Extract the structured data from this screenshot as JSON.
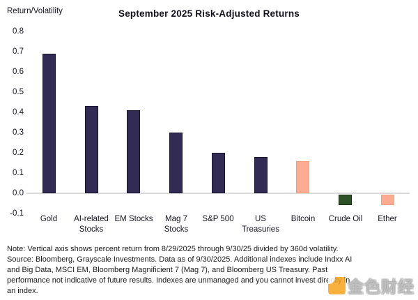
{
  "chart_data": {
    "type": "bar",
    "title": "September 2025 Risk-Adjusted Returns",
    "ylabel": "Return/Volatility",
    "xlabel": "",
    "categories": [
      "Gold",
      "AI-related\nStocks",
      "EM Stocks",
      "Mag 7\nStocks",
      "S&P 500",
      "US\nTreasuries",
      "Bitcoin",
      "Crude Oil",
      "Ether"
    ],
    "values": [
      0.69,
      0.43,
      0.41,
      0.3,
      0.2,
      0.18,
      0.16,
      -0.05,
      -0.05
    ],
    "bar_fills": [
      "#322B54",
      "#322B54",
      "#322B54",
      "#322B54",
      "#322B54",
      "#322B54",
      "#FBAC92",
      "#2E5128",
      "#FBAC92"
    ],
    "bar_strokes": [
      "#191433",
      "#191433",
      "#191433",
      "#191433",
      "#191433",
      "#191433",
      "#F29C80",
      "#16300F",
      "#F29C80"
    ],
    "yticks": [
      0.8,
      0.7,
      0.6,
      0.5,
      0.4,
      0.3,
      0.2,
      0.1,
      0.0,
      -0.1
    ],
    "ylim": [
      -0.1,
      0.8
    ],
    "grid": "zero-line-only",
    "legend_position": "none"
  },
  "note": {
    "lines": [
      "Note: Vertical axis shows percent return from 8/29/2025 through 9/30/25 divided by 360d volatility.",
      "Source: Bloomberg, Grayscale Investments. Data as of 9/30/2025. Additional indexes include Indxx AI",
      "and Big Data, MSCI EM, Bloomberg Magnificient 7 (Mag 7), and Bloomberg US Treasury. Past",
      "performance not indicative of future results. Indexes are unmanaged and you cannot invest directly in",
      "an index."
    ]
  },
  "watermark": {
    "text": "金色财经",
    "icon": "jinse-finance-logo",
    "accent_color": "#F7A41D"
  }
}
